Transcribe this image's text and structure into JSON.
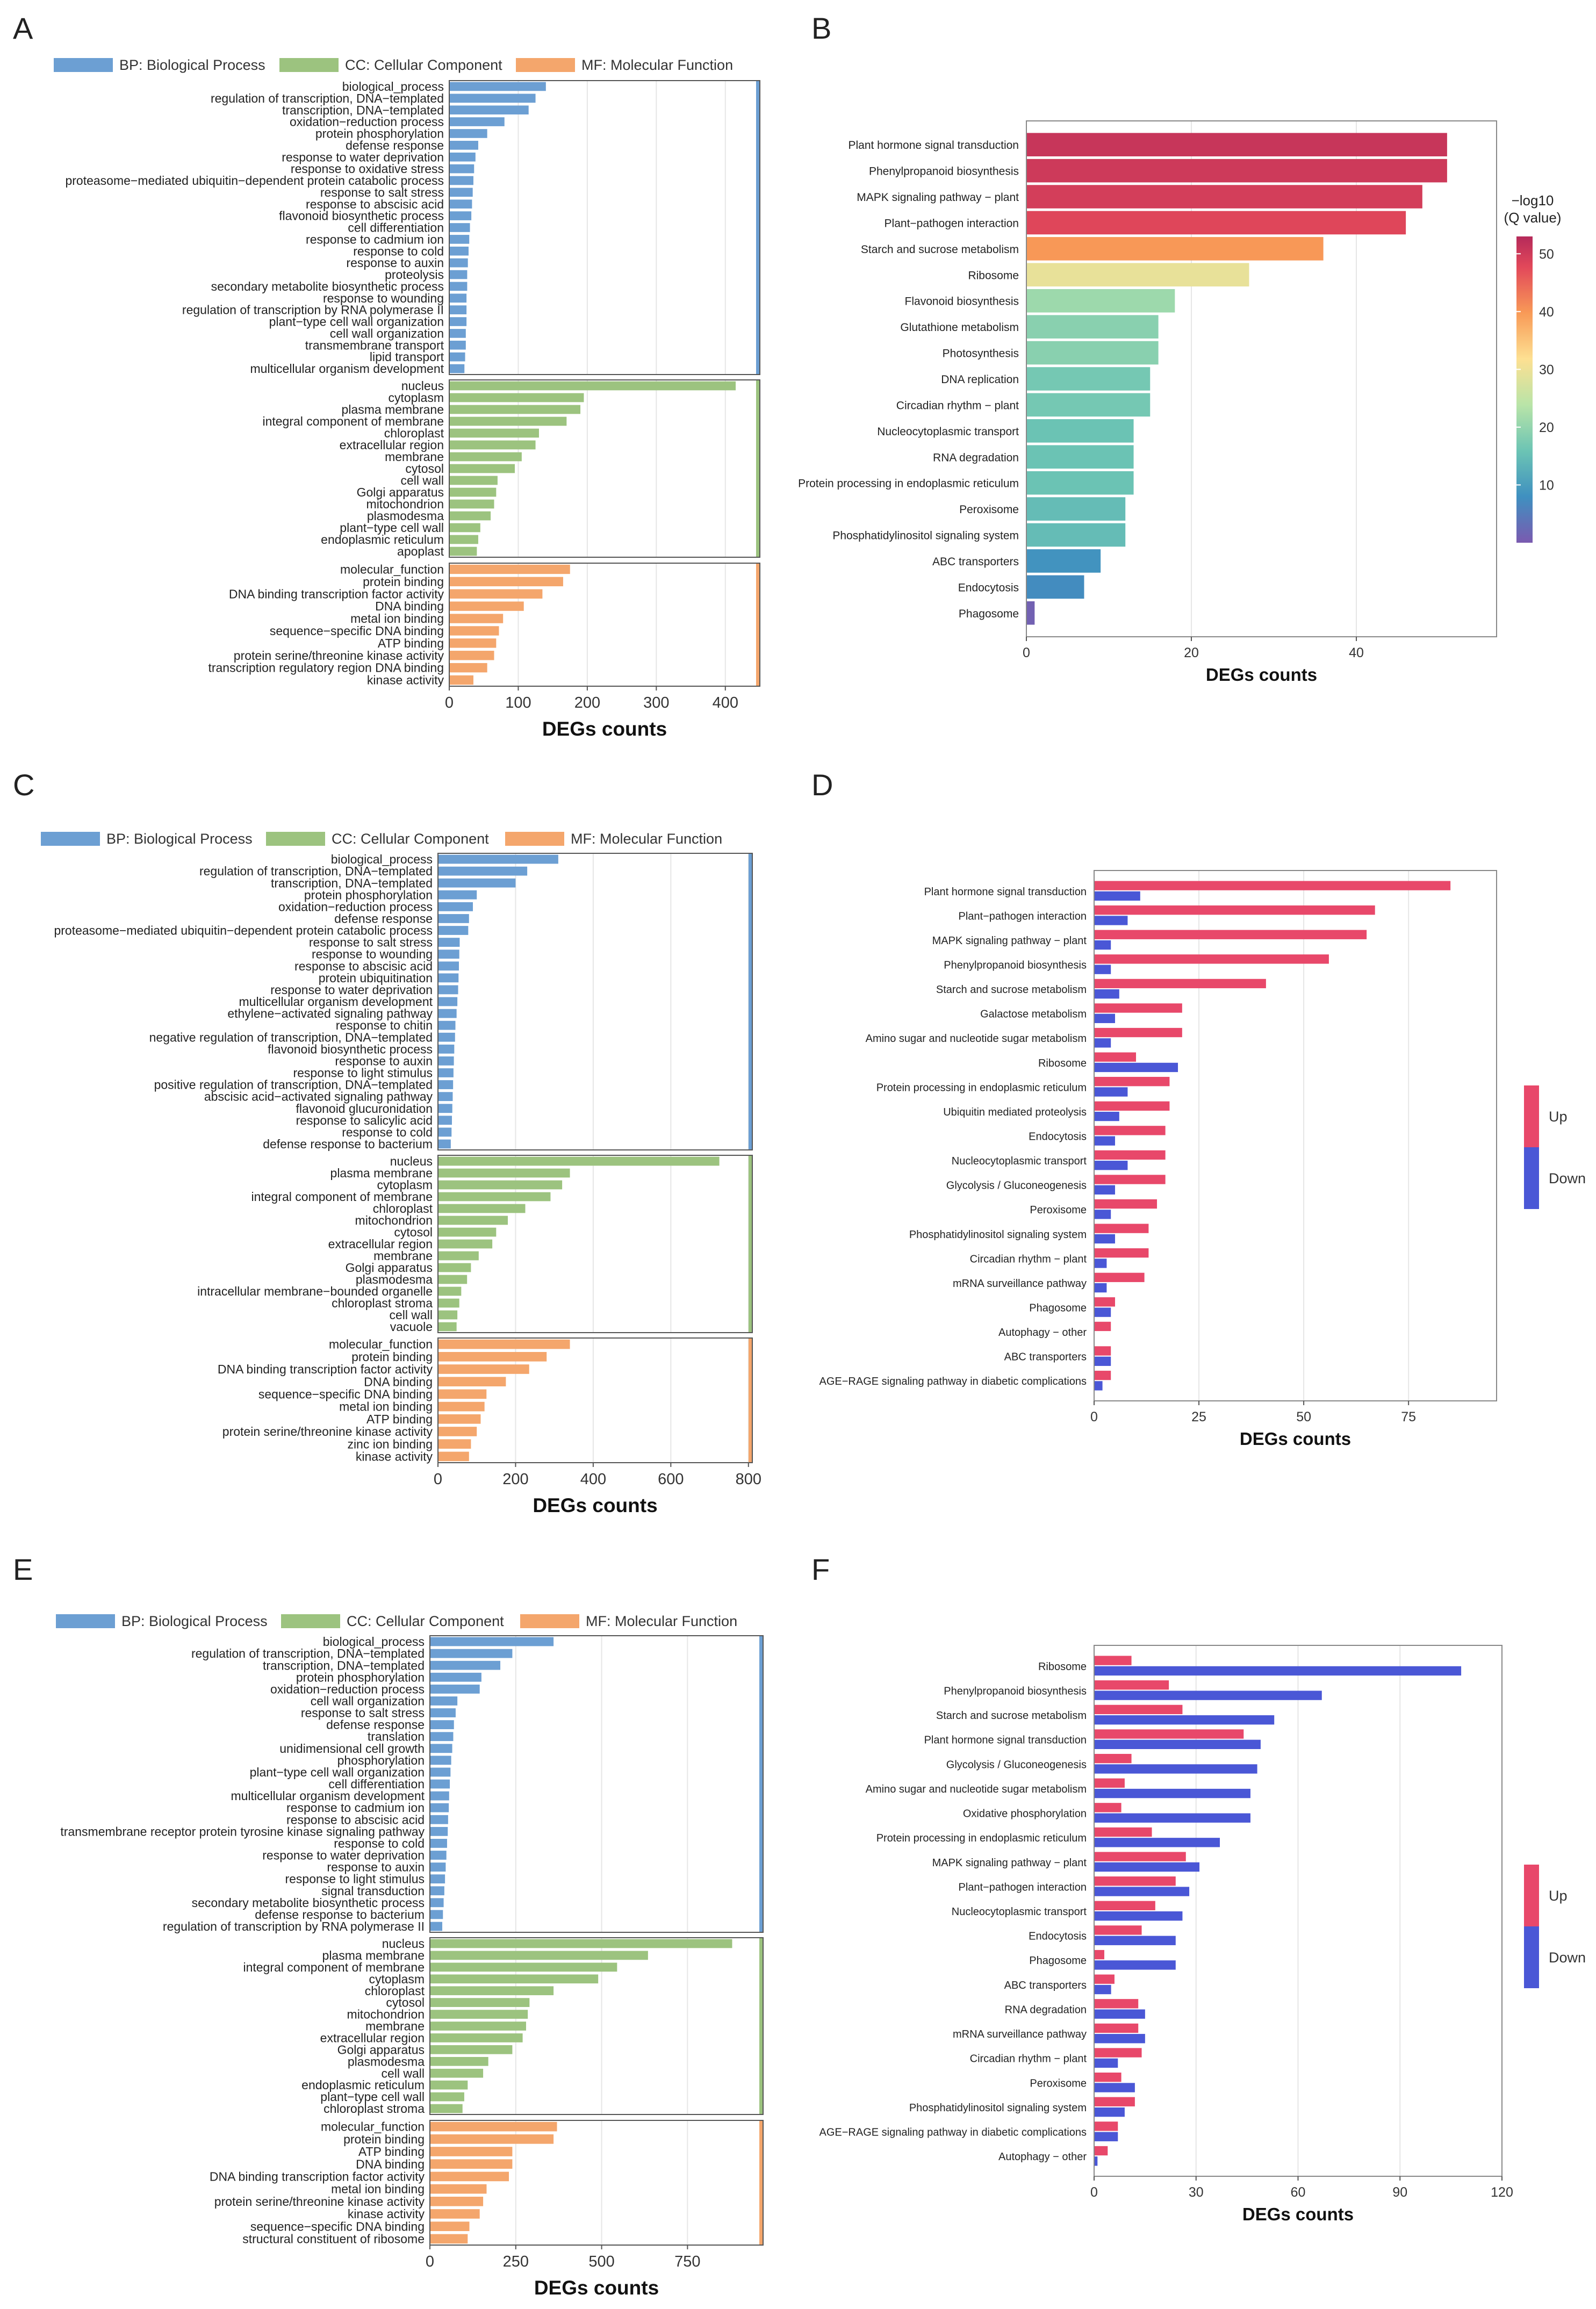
{
  "colors": {
    "bp": "#6c9fd3",
    "cc": "#9cc37f",
    "mf": "#f4a66c",
    "up": "#e8486a",
    "down": "#4a57d6",
    "grid": "#e6e6e6",
    "frame": "#888888",
    "ramp": [
      "#7a5ab0",
      "#3f90c0",
      "#6cc4b4",
      "#b9e4a8",
      "#fde092",
      "#f89a57",
      "#e2485a",
      "#b52a5a"
    ]
  },
  "legend_go": {
    "bp": "BP: Biological Process",
    "cc": "CC: Cellular Component",
    "mf": "MF: Molecular Function"
  },
  "legend_updown": {
    "up": "Up",
    "down": "Down"
  },
  "chart_data": [
    {
      "panel": "A",
      "type": "bar",
      "orientation": "horizontal",
      "xlabel": "DEGs counts",
      "xlim": [
        0,
        450
      ],
      "xticks": [
        0,
        100,
        200,
        300,
        400
      ],
      "groups": [
        {
          "key": "bp",
          "categories": [
            "biological_process",
            "regulation of transcription, DNA−templated",
            "transcription, DNA−templated",
            "oxidation−reduction process",
            "protein phosphorylation",
            "defense response",
            "response to water deprivation",
            "response to oxidative stress",
            "proteasome−mediated ubiquitin−dependent protein catabolic process",
            "response to salt stress",
            "response to abscisic acid",
            "flavonoid biosynthetic process",
            "cell differentiation",
            "response to cadmium ion",
            "response to cold",
            "response to auxin",
            "proteolysis",
            "secondary metabolite biosynthetic process",
            "response to wounding",
            "regulation of transcription by RNA polymerase II",
            "plant−type cell wall organization",
            "cell wall organization",
            "transmembrane transport",
            "lipid transport",
            "multicellular organism development"
          ],
          "values": [
            140,
            125,
            115,
            80,
            55,
            42,
            38,
            36,
            35,
            34,
            33,
            32,
            30,
            29,
            28,
            27,
            26,
            26,
            25,
            25,
            25,
            24,
            24,
            23,
            22
          ]
        },
        {
          "key": "cc",
          "categories": [
            "nucleus",
            "cytoplasm",
            "plasma membrane",
            "integral component of membrane",
            "chloroplast",
            "extracellular region",
            "membrane",
            "cytosol",
            "cell wall",
            "Golgi apparatus",
            "mitochondrion",
            "plasmodesma",
            "plant−type cell wall",
            "endoplasmic reticulum",
            "apoplast"
          ],
          "values": [
            415,
            195,
            190,
            170,
            130,
            125,
            105,
            95,
            70,
            68,
            65,
            60,
            45,
            42,
            40
          ]
        },
        {
          "key": "mf",
          "categories": [
            "molecular_function",
            "protein binding",
            "DNA binding transcription factor activity",
            "DNA binding",
            "metal ion binding",
            "sequence−specific DNA binding",
            "ATP binding",
            "protein serine/threonine kinase activity",
            "transcription regulatory region DNA binding",
            "kinase activity"
          ],
          "values": [
            175,
            165,
            135,
            108,
            78,
            72,
            68,
            65,
            55,
            35
          ]
        }
      ]
    },
    {
      "panel": "B",
      "type": "bar",
      "orientation": "horizontal",
      "xlabel": "DEGs counts",
      "xlim": [
        0,
        57
      ],
      "xticks": [
        0,
        20,
        40
      ],
      "colorbar": {
        "title_line1": "−log10",
        "title_line2": "(Q value)",
        "ticks": [
          10,
          20,
          30,
          40,
          50
        ],
        "range": [
          0,
          53
        ]
      },
      "categories": [
        "Plant hormone signal transduction",
        "Phenylpropanoid biosynthesis",
        "MAPK signaling pathway − plant",
        "Plant−pathogen interaction",
        "Starch and sucrose metabolism",
        "Ribosome",
        "Flavonoid biosynthesis",
        "Glutathione metabolism",
        "Photosynthesis",
        "DNA replication",
        "Circadian rhythm − plant",
        "Nucleocytoplasmic transport",
        "RNA degradation",
        "Protein processing in endoplasmic reticulum",
        "Peroxisome",
        "Phosphatidylinositol signaling system",
        "ABC transporters",
        "Endocytosis",
        "Phagosome"
      ],
      "values": [
        51,
        51,
        48,
        46,
        36,
        27,
        18,
        16,
        16,
        15,
        15,
        13,
        13,
        13,
        12,
        12,
        9,
        7,
        1
      ],
      "q_values": [
        50,
        49,
        48,
        46,
        38,
        28,
        20,
        18,
        18,
        16,
        16,
        15,
        15,
        15,
        14,
        14,
        8,
        7,
        1
      ]
    },
    {
      "panel": "C",
      "type": "bar",
      "orientation": "horizontal",
      "xlabel": "DEGs counts",
      "xlim": [
        0,
        810
      ],
      "xticks": [
        0,
        200,
        400,
        600,
        800
      ],
      "groups": [
        {
          "key": "bp",
          "categories": [
            "biological_process",
            "regulation of transcription, DNA−templated",
            "transcription, DNA−templated",
            "protein phosphorylation",
            "oxidation−reduction process",
            "defense response",
            "proteasome−mediated ubiquitin−dependent protein catabolic process",
            "response to salt stress",
            "response to wounding",
            "response to abscisic acid",
            "protein ubiquitination",
            "response to water deprivation",
            "multicellular organism development",
            "ethylene−activated signaling pathway",
            "response to chitin",
            "negative regulation of transcription, DNA−templated",
            "flavonoid biosynthetic process",
            "response to auxin",
            "response to light stimulus",
            "positive regulation of transcription, DNA−templated",
            "abscisic acid−activated signaling pathway",
            "flavonoid glucuronidation",
            "response to salicylic acid",
            "response to cold",
            "defense response to bacterium"
          ],
          "values": [
            310,
            230,
            200,
            100,
            90,
            80,
            78,
            56,
            55,
            54,
            53,
            52,
            50,
            48,
            45,
            44,
            42,
            41,
            40,
            39,
            38,
            37,
            36,
            35,
            33
          ]
        },
        {
          "key": "cc",
          "categories": [
            "nucleus",
            "plasma membrane",
            "cytoplasm",
            "integral component of membrane",
            "chloroplast",
            "mitochondrion",
            "cytosol",
            "extracellular region",
            "membrane",
            "Golgi apparatus",
            "plasmodesma",
            "intracellular membrane−bounded organelle",
            "chloroplast stroma",
            "cell wall",
            "vacuole"
          ],
          "values": [
            725,
            340,
            320,
            290,
            225,
            180,
            150,
            140,
            105,
            85,
            75,
            60,
            55,
            50,
            48
          ]
        },
        {
          "key": "mf",
          "categories": [
            "molecular_function",
            "protein binding",
            "DNA binding transcription factor activity",
            "DNA binding",
            "sequence−specific DNA binding",
            "metal ion binding",
            "ATP binding",
            "protein serine/threonine kinase activity",
            "zinc ion binding",
            "kinase activity"
          ],
          "values": [
            340,
            280,
            235,
            175,
            125,
            120,
            110,
            100,
            85,
            80
          ]
        }
      ]
    },
    {
      "panel": "D",
      "type": "bar",
      "orientation": "horizontal",
      "grouped": true,
      "xlabel": "DEGs counts",
      "xlim": [
        0,
        96
      ],
      "xticks": [
        0,
        25,
        50,
        75
      ],
      "categories": [
        "Plant hormone signal transduction",
        "Plant−pathogen interaction",
        "MAPK signaling pathway − plant",
        "Phenylpropanoid biosynthesis",
        "Starch and sucrose metabolism",
        "Galactose metabolism",
        "Amino sugar and nucleotide sugar metabolism",
        "Ribosome",
        "Protein processing in endoplasmic reticulum",
        "Ubiquitin mediated proteolysis",
        "Endocytosis",
        "Nucleocytoplasmic transport",
        "Glycolysis / Gluconeogenesis",
        "Peroxisome",
        "Phosphatidylinositol signaling system",
        "Circadian rhythm − plant",
        "mRNA surveillance pathway",
        "Phagosome",
        "Autophagy − other",
        "ABC transporters",
        "AGE−RAGE signaling pathway in diabetic complications"
      ],
      "series": [
        {
          "name": "Up",
          "values": [
            85,
            67,
            65,
            56,
            41,
            21,
            21,
            10,
            18,
            18,
            17,
            17,
            17,
            15,
            13,
            13,
            12,
            5,
            4,
            4,
            4
          ]
        },
        {
          "name": "Down",
          "values": [
            11,
            8,
            4,
            4,
            6,
            5,
            4,
            20,
            8,
            6,
            5,
            8,
            5,
            4,
            5,
            3,
            3,
            4,
            0,
            4,
            2
          ]
        }
      ]
    },
    {
      "panel": "E",
      "type": "bar",
      "orientation": "horizontal",
      "xlabel": "DEGs counts",
      "xlim": [
        0,
        970
      ],
      "xticks": [
        0,
        250,
        500,
        750
      ],
      "groups": [
        {
          "key": "bp",
          "categories": [
            "biological_process",
            "regulation of transcription, DNA−templated",
            "transcription, DNA−templated",
            "protein phosphorylation",
            "oxidation−reduction process",
            "cell wall organization",
            "response to salt stress",
            "defense response",
            "translation",
            "unidimensional cell growth",
            "phosphorylation",
            "plant−type cell wall organization",
            "cell differentiation",
            "multicellular organism development",
            "response to cadmium ion",
            "response to abscisic acid",
            "transmembrane receptor protein tyrosine kinase signaling pathway",
            "response to cold",
            "response to water deprivation",
            "response to auxin",
            "response to light stimulus",
            "signal transduction",
            "secondary metabolite biosynthetic process",
            "defense response to bacterium",
            "regulation of transcription by RNA polymerase II"
          ],
          "values": [
            360,
            240,
            205,
            150,
            145,
            80,
            75,
            70,
            68,
            65,
            62,
            60,
            58,
            56,
            55,
            53,
            52,
            50,
            48,
            46,
            44,
            42,
            40,
            38,
            36
          ]
        },
        {
          "key": "cc",
          "categories": [
            "nucleus",
            "plasma membrane",
            "integral component of membrane",
            "cytoplasm",
            "chloroplast",
            "cytosol",
            "mitochondrion",
            "membrane",
            "extracellular region",
            "Golgi apparatus",
            "plasmodesma",
            "cell wall",
            "endoplasmic reticulum",
            "plant−type cell wall",
            "chloroplast stroma"
          ],
          "values": [
            880,
            635,
            545,
            490,
            360,
            290,
            285,
            280,
            270,
            240,
            170,
            155,
            110,
            100,
            95
          ]
        },
        {
          "key": "mf",
          "categories": [
            "molecular_function",
            "protein binding",
            "ATP binding",
            "DNA binding",
            "DNA binding transcription factor activity",
            "metal ion binding",
            "protein serine/threonine kinase activity",
            "kinase activity",
            "sequence−specific DNA binding",
            "structural constituent of ribosome"
          ],
          "values": [
            370,
            360,
            240,
            240,
            230,
            165,
            155,
            145,
            115,
            110
          ]
        }
      ]
    },
    {
      "panel": "F",
      "type": "bar",
      "orientation": "horizontal",
      "grouped": true,
      "xlabel": "DEGs counts",
      "xlim": [
        0,
        120
      ],
      "xticks": [
        0,
        30,
        60,
        90,
        120
      ],
      "categories": [
        "Ribosome",
        "Phenylpropanoid biosynthesis",
        "Starch and sucrose metabolism",
        "Plant hormone signal transduction",
        "Glycolysis / Gluconeogenesis",
        "Amino sugar and nucleotide sugar metabolism",
        "Oxidative phosphorylation",
        "Protein processing in endoplasmic reticulum",
        "MAPK signaling pathway − plant",
        "Plant−pathogen interaction",
        "Nucleocytoplasmic transport",
        "Endocytosis",
        "Phagosome",
        "ABC transporters",
        "RNA degradation",
        "mRNA surveillance pathway",
        "Circadian rhythm − plant",
        "Peroxisome",
        "Phosphatidylinositol signaling system",
        "AGE−RAGE signaling pathway in diabetic complications",
        "Autophagy − other"
      ],
      "series": [
        {
          "name": "Up",
          "values": [
            11,
            22,
            26,
            44,
            11,
            9,
            8,
            17,
            27,
            24,
            18,
            14,
            3,
            6,
            13,
            13,
            14,
            8,
            12,
            7,
            4
          ]
        },
        {
          "name": "Down",
          "values": [
            108,
            67,
            53,
            49,
            48,
            46,
            46,
            37,
            31,
            28,
            26,
            24,
            24,
            5,
            15,
            15,
            7,
            12,
            9,
            7,
            1
          ]
        }
      ]
    }
  ]
}
